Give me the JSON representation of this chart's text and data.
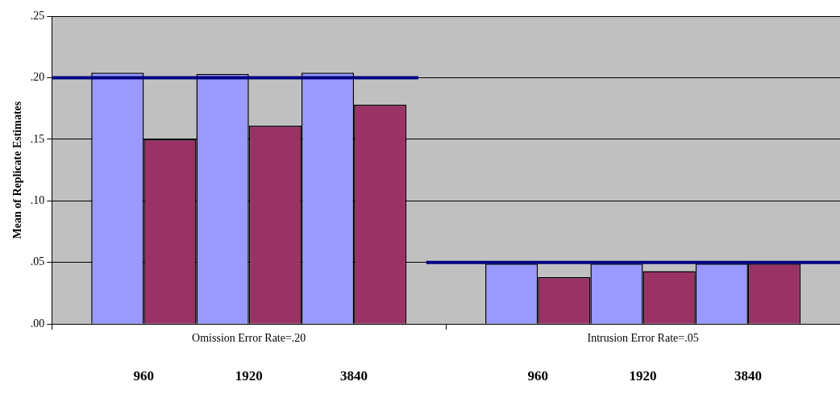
{
  "chart_data": {
    "type": "bar",
    "ylabel": "Mean of Replicate Estimates",
    "categories": [
      "Omission Error Rate=.20",
      "Intrusion Error Rate=.05"
    ],
    "series": [
      {
        "color": "#9999ff",
        "values": [
          0.204,
          0.049
        ]
      },
      {
        "color": "#993366",
        "values": [
          0.15,
          0.038
        ]
      },
      {
        "color": "#9999ff",
        "values": [
          0.203,
          0.049
        ]
      },
      {
        "color": "#993366",
        "values": [
          0.161,
          0.043
        ]
      },
      {
        "color": "#9999ff",
        "values": [
          0.204,
          0.049
        ]
      },
      {
        "color": "#993366",
        "values": [
          0.178,
          0.049
        ]
      }
    ],
    "ref_lines": [
      {
        "axis": "y",
        "value": 0.2,
        "color": "#000080"
      },
      {
        "axis": "y",
        "value": 0.05,
        "color": "#000080"
      }
    ],
    "annotations": [
      "960",
      "1920",
      "3840",
      "960",
      "1920",
      "3840"
    ],
    "ylim": [
      0,
      0.25
    ],
    "yticks": [
      {
        "value": 0,
        "label": ".00"
      },
      {
        "value": 0.05,
        "label": ".05"
      },
      {
        "value": 0.1,
        "label": ".10"
      },
      {
        "value": 0.15,
        "label": ".15"
      },
      {
        "value": 0.2,
        "label": ".20"
      },
      {
        "value": 0.25,
        "label": ".25"
      }
    ],
    "grid": "y",
    "legend": false
  }
}
